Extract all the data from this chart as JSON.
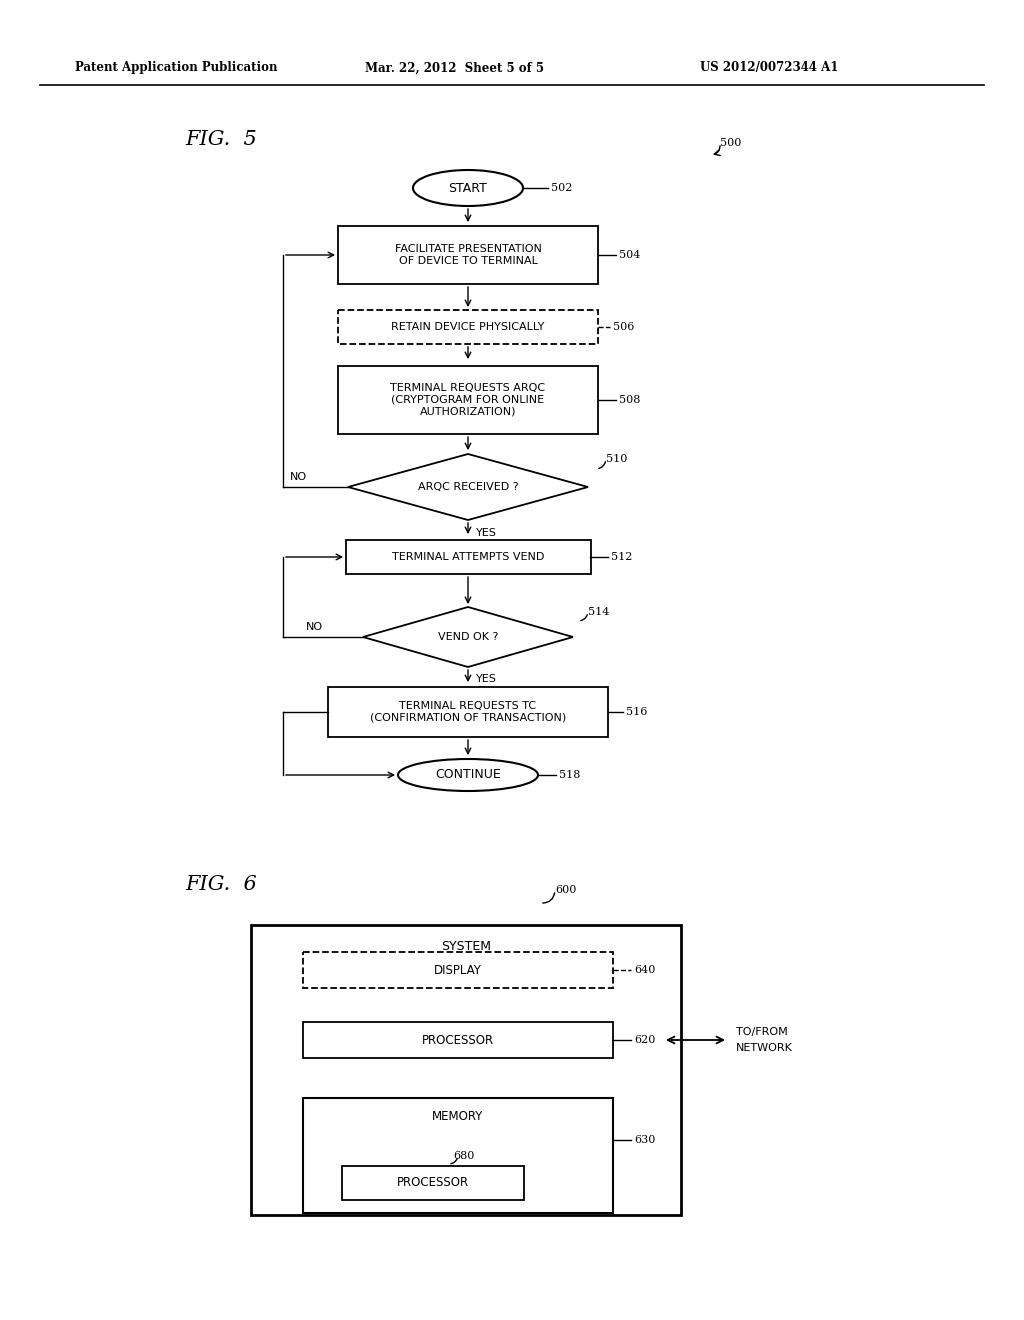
{
  "bg_color": "#ffffff",
  "header_left": "Patent Application Publication",
  "header_mid": "Mar. 22, 2012  Sheet 5 of 5",
  "header_right": "US 2012/0072344 A1",
  "fig5_label": "FIG.  5",
  "fig6_label": "FIG.  6",
  "fig5_ref": "500",
  "fig6_ref": "600",
  "text_font_size": 7.5,
  "ref_font_size": 8.0,
  "header_font_size": 8.5
}
